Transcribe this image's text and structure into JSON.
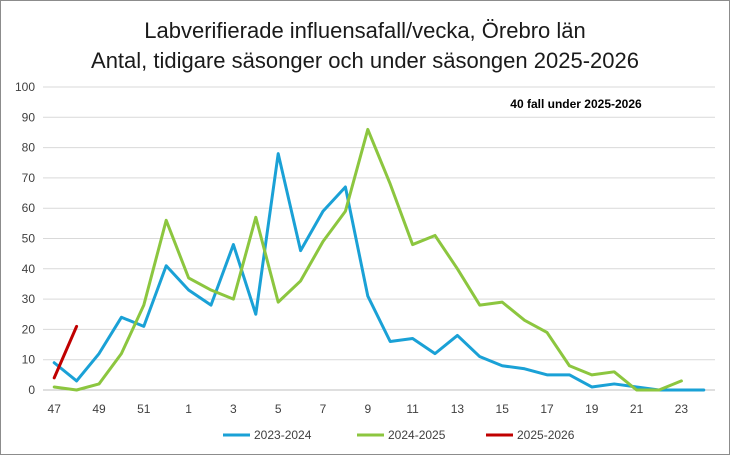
{
  "chart_data": {
    "type": "line",
    "title_line1": "Labverifierade influensafall/vecka, Örebro län",
    "title_line2": "Antal, tidigare säsonger och  under säsongen 2025-2026",
    "annotation": "40 fall under 2025-2026",
    "xlabel": "",
    "ylabel": "",
    "ylim": [
      0,
      100
    ],
    "yticks": [
      0,
      10,
      20,
      30,
      40,
      50,
      60,
      70,
      80,
      90,
      100
    ],
    "grid": true,
    "legend_position": "bottom",
    "weeks": [
      "47",
      "48",
      "49",
      "50",
      "51",
      "52",
      "1",
      "2",
      "3",
      "4",
      "5",
      "6",
      "7",
      "8",
      "9",
      "10",
      "11",
      "12",
      "13",
      "14",
      "15",
      "16",
      "17",
      "18",
      "19",
      "20",
      "21",
      "22",
      "23",
      "24"
    ],
    "x_tick_labels": [
      "47",
      "",
      "49",
      "",
      "51",
      "",
      "1",
      "",
      "3",
      "",
      "5",
      "",
      "7",
      "",
      "9",
      "",
      "11",
      "",
      "13",
      "",
      "15",
      "",
      "17",
      "",
      "19",
      "",
      "21",
      "",
      "23",
      ""
    ],
    "series": [
      {
        "name": "2023-2024",
        "color": "#1aa1d6",
        "values": [
          9,
          3,
          12,
          24,
          21,
          41,
          33,
          28,
          48,
          25,
          78,
          46,
          59,
          67,
          31,
          16,
          17,
          12,
          18,
          11,
          8,
          7,
          5,
          5,
          1,
          2,
          1,
          0,
          0,
          0
        ]
      },
      {
        "name": "2024-2025",
        "color": "#8cc63f",
        "values": [
          1,
          0,
          2,
          12,
          28,
          56,
          37,
          33,
          30,
          57,
          29,
          36,
          49,
          59,
          86,
          68,
          48,
          51,
          40,
          28,
          29,
          23,
          19,
          8,
          5,
          6,
          0,
          0,
          3,
          null
        ]
      },
      {
        "name": "2025-2026",
        "color": "#c00000",
        "values": [
          4,
          21,
          null,
          null,
          null,
          null,
          null,
          null,
          null,
          null,
          null,
          null,
          null,
          null,
          null,
          null,
          null,
          null,
          null,
          null,
          null,
          null,
          null,
          null,
          null,
          null,
          null,
          null,
          null,
          null
        ]
      }
    ]
  }
}
